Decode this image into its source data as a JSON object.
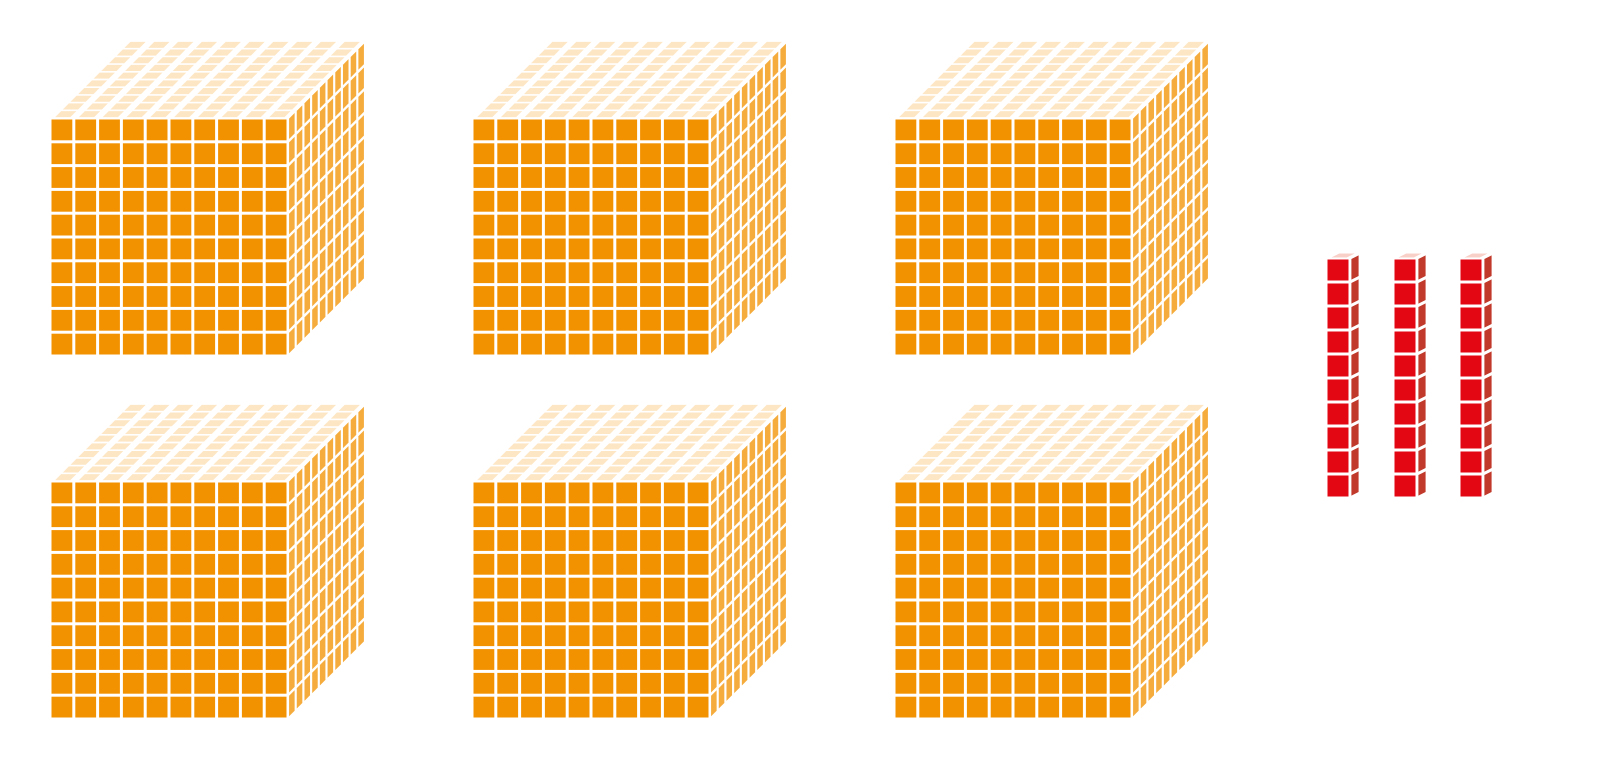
{
  "blocks": {
    "thousands": {
      "count": 6,
      "grid_size": 10,
      "name": "thousand-cube"
    },
    "tens": {
      "count": 3,
      "units_per_rod": 10,
      "name": "ten-rod"
    }
  },
  "colors": {
    "cube_front": "#F39200",
    "cube_side": "#F5AC3D",
    "cube_top": "#FDE6C4",
    "cube_gap": "#ffffff",
    "rod_front": "#E30613",
    "rod_side": "#C0392B",
    "rod_top": "#F8D0C8",
    "background": "#ffffff"
  }
}
